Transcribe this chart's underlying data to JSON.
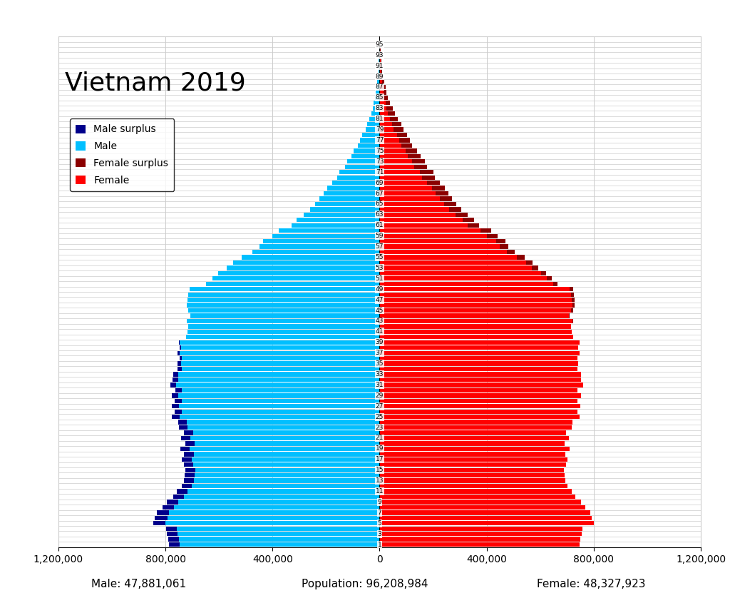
{
  "title": "Vietnam 2019",
  "male_total": "Male: 47,881,061",
  "pop_total": "Population: 96,208,984",
  "female_total": "Female: 48,327,923",
  "xlim": 1200000,
  "xticks": [
    -1200000,
    -800000,
    -400000,
    0,
    400000,
    800000,
    1200000
  ],
  "xtick_labels": [
    "1,200,000",
    "800,000",
    "400,000",
    "0",
    "400,000",
    "800,000",
    "1,200,000"
  ],
  "color_male": "#00BFFF",
  "color_male_surplus": "#00008B",
  "color_female": "#FF0000",
  "color_female_surplus": "#8B0000",
  "background_color": "#FFFFFF",
  "grid_color": "#CCCCCC",
  "ages": [
    1,
    2,
    3,
    4,
    5,
    6,
    7,
    8,
    9,
    10,
    11,
    12,
    13,
    14,
    15,
    16,
    17,
    18,
    19,
    20,
    21,
    22,
    23,
    24,
    25,
    26,
    27,
    28,
    29,
    30,
    31,
    32,
    33,
    34,
    35,
    36,
    37,
    38,
    39,
    40,
    41,
    42,
    43,
    44,
    45,
    46,
    47,
    48,
    49,
    50,
    51,
    52,
    53,
    54,
    55,
    56,
    57,
    58,
    59,
    60,
    61,
    62,
    63,
    64,
    65,
    66,
    67,
    68,
    69,
    70,
    71,
    72,
    73,
    74,
    75,
    76,
    77,
    78,
    79,
    80,
    81,
    82,
    83,
    84,
    85,
    86,
    87,
    88,
    89,
    90,
    91,
    92,
    93,
    94,
    95
  ],
  "male_pop": [
    786000,
    790000,
    794000,
    797000,
    845000,
    839000,
    831000,
    811000,
    795000,
    772000,
    759000,
    740000,
    732000,
    728000,
    726000,
    732000,
    738000,
    730000,
    744000,
    726000,
    742000,
    730000,
    750000,
    752000,
    776000,
    766000,
    776000,
    766000,
    776000,
    762000,
    782000,
    774000,
    770000,
    754000,
    754000,
    748000,
    756000,
    748000,
    750000,
    724000,
    718000,
    714000,
    720000,
    706000,
    716000,
    720000,
    718000,
    716000,
    710000,
    648000,
    624000,
    602000,
    570000,
    548000,
    514000,
    476000,
    450000,
    436000,
    402000,
    378000,
    330000,
    310000,
    284000,
    260000,
    240000,
    224000,
    210000,
    196000,
    176000,
    158000,
    150000,
    130000,
    120000,
    106000,
    96000,
    82000,
    72000,
    64000,
    52000,
    46000,
    38000,
    30000,
    26000,
    22000,
    18000,
    14000,
    12000,
    9000,
    7000,
    5000,
    4000,
    3000,
    2000,
    1500,
    1000
  ],
  "female_pop": [
    748000,
    751000,
    754000,
    757000,
    800000,
    793000,
    787000,
    768000,
    752000,
    731000,
    718000,
    701000,
    694000,
    690000,
    689000,
    696000,
    703000,
    695000,
    709000,
    692000,
    708000,
    697000,
    718000,
    721000,
    747000,
    738000,
    749000,
    740000,
    752000,
    740000,
    761000,
    753000,
    752000,
    738000,
    742000,
    738000,
    748000,
    742000,
    746000,
    722000,
    718000,
    714000,
    722000,
    710000,
    722000,
    728000,
    728000,
    726000,
    722000,
    664000,
    642000,
    622000,
    592000,
    572000,
    542000,
    506000,
    482000,
    470000,
    440000,
    418000,
    372000,
    354000,
    328000,
    304000,
    286000,
    270000,
    258000,
    244000,
    224000,
    206000,
    200000,
    178000,
    168000,
    152000,
    140000,
    122000,
    112000,
    102000,
    88000,
    80000,
    68000,
    56000,
    48000,
    40000,
    32000,
    26000,
    22000,
    17000,
    13000,
    10000,
    8000,
    6000,
    4000,
    3000,
    2000
  ]
}
